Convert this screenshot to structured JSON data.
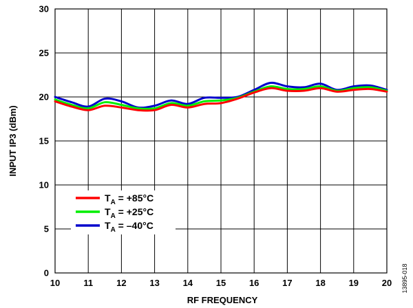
{
  "chart_data": {
    "type": "line",
    "xlabel": "RF FREQUENCY",
    "ylabel": "INPUT IP3 (dBm)",
    "xlim": [
      10,
      20
    ],
    "ylim": [
      0,
      30
    ],
    "xticks": [
      10,
      11,
      12,
      13,
      14,
      15,
      16,
      17,
      18,
      19,
      20
    ],
    "yticks": [
      0,
      5,
      10,
      15,
      20,
      25,
      30
    ],
    "grid": true,
    "legend_position": "lower-left",
    "figure_id": "13895-018",
    "series": [
      {
        "name_main": "T",
        "name_sub": "A",
        "name_rest": " = +85°C",
        "color": "#ff0000",
        "x": [
          10,
          10.5,
          11,
          11.5,
          12,
          12.5,
          13,
          13.5,
          14,
          14.5,
          15,
          15.5,
          16,
          16.5,
          17,
          17.5,
          18,
          18.5,
          19,
          19.5,
          20
        ],
        "y": [
          19.5,
          18.9,
          18.5,
          19.0,
          18.8,
          18.5,
          18.5,
          19.1,
          18.8,
          19.2,
          19.3,
          19.8,
          20.5,
          21.0,
          20.7,
          20.7,
          21.0,
          20.6,
          20.8,
          20.9,
          20.6
        ]
      },
      {
        "name_main": "T",
        "name_sub": "A",
        "name_rest": " = +25°C",
        "color": "#00ee00",
        "x": [
          10,
          10.5,
          11,
          11.5,
          12,
          12.5,
          13,
          13.5,
          14,
          14.5,
          15,
          15.5,
          16,
          16.5,
          17,
          17.5,
          18,
          18.5,
          19,
          19.5,
          20
        ],
        "y": [
          19.7,
          19.1,
          18.7,
          19.4,
          19.1,
          18.7,
          18.7,
          19.3,
          19.0,
          19.5,
          19.6,
          19.9,
          20.6,
          21.2,
          20.9,
          20.9,
          21.2,
          20.7,
          21.0,
          21.1,
          20.7
        ]
      },
      {
        "name_main": "T",
        "name_sub": "A",
        "name_rest": " = –40°C",
        "color": "#0000cc",
        "x": [
          10,
          10.5,
          11,
          11.5,
          12,
          12.5,
          13,
          13.5,
          14,
          14.5,
          15,
          15.5,
          16,
          16.5,
          17,
          17.5,
          18,
          18.5,
          19,
          19.5,
          20
        ],
        "y": [
          20.0,
          19.4,
          18.9,
          19.8,
          19.5,
          18.8,
          19.0,
          19.6,
          19.2,
          19.9,
          19.9,
          20.0,
          20.8,
          21.6,
          21.2,
          21.1,
          21.5,
          20.8,
          21.2,
          21.3,
          20.8
        ]
      }
    ]
  }
}
